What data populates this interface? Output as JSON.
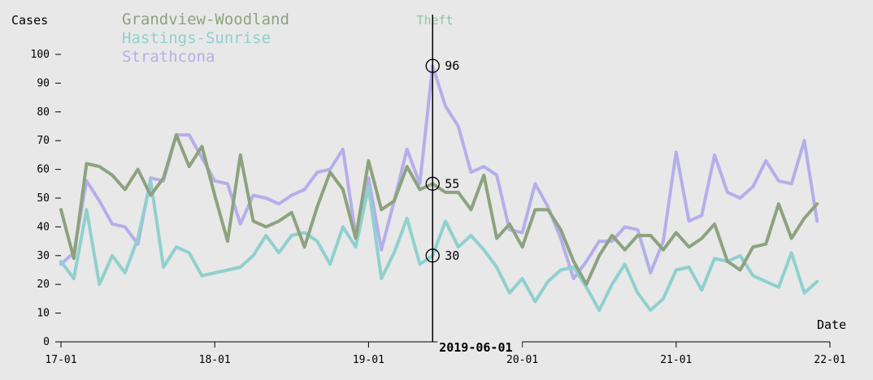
{
  "chart_data": {
    "type": "line",
    "title": "Theft",
    "xlabel": "Date",
    "ylabel": "Cases",
    "ylim": [
      0,
      100
    ],
    "yticks": [
      0,
      10,
      20,
      30,
      40,
      50,
      60,
      70,
      80,
      90,
      100
    ],
    "xticks": [
      "17-01",
      "18-01",
      "19-01",
      "20-01",
      "21-01",
      "22-01"
    ],
    "xlim": [
      "2017-01",
      "2022-01"
    ],
    "series": [
      {
        "name": "Grandview-Woodland",
        "color": "#8da27f",
        "x": [
          "2017-01",
          "2017-02",
          "2017-03",
          "2017-04",
          "2017-05",
          "2017-06",
          "2017-07",
          "2017-08",
          "2017-09",
          "2017-10",
          "2017-11",
          "2017-12",
          "2018-01",
          "2018-02",
          "2018-03",
          "2018-04",
          "2018-05",
          "2018-06",
          "2018-07",
          "2018-08",
          "2018-09",
          "2018-10",
          "2018-11",
          "2018-12",
          "2019-01",
          "2019-02",
          "2019-03",
          "2019-04",
          "2019-05",
          "2019-06",
          "2019-07",
          "2019-08",
          "2019-09",
          "2019-10",
          "2019-11",
          "2019-12",
          "2020-01",
          "2020-02",
          "2020-03",
          "2020-04",
          "2020-05",
          "2020-06",
          "2020-07",
          "2020-08",
          "2020-09",
          "2020-10",
          "2020-11",
          "2020-12",
          "2021-01",
          "2021-02",
          "2021-03",
          "2021-04",
          "2021-05",
          "2021-06",
          "2021-07",
          "2021-08",
          "2021-09",
          "2021-10",
          "2021-11",
          "2021-12"
        ],
        "values": [
          46,
          29,
          62,
          61,
          58,
          53,
          60,
          51,
          57,
          72,
          61,
          68,
          51,
          35,
          65,
          42,
          40,
          42,
          45,
          33,
          47,
          59,
          53,
          36,
          63,
          46,
          49,
          61,
          53,
          55,
          52,
          52,
          46,
          58,
          36,
          41,
          33,
          46,
          46,
          39,
          28,
          20,
          30,
          37,
          32,
          37,
          37,
          32,
          38,
          33,
          36,
          41,
          28,
          25,
          33,
          34,
          48,
          36,
          43,
          48
        ]
      },
      {
        "name": "Hastings-Sunrise",
        "color": "#8fd0cf",
        "x": [
          "2017-01",
          "2017-02",
          "2017-03",
          "2017-04",
          "2017-05",
          "2017-06",
          "2017-07",
          "2017-08",
          "2017-09",
          "2017-10",
          "2017-11",
          "2017-12",
          "2018-01",
          "2018-02",
          "2018-03",
          "2018-04",
          "2018-05",
          "2018-06",
          "2018-07",
          "2018-08",
          "2018-09",
          "2018-10",
          "2018-11",
          "2018-12",
          "2019-01",
          "2019-02",
          "2019-03",
          "2019-04",
          "2019-05",
          "2019-06",
          "2019-07",
          "2019-08",
          "2019-09",
          "2019-10",
          "2019-11",
          "2019-12",
          "2020-01",
          "2020-02",
          "2020-03",
          "2020-04",
          "2020-05",
          "2020-06",
          "2020-07",
          "2020-08",
          "2020-09",
          "2020-10",
          "2020-11",
          "2020-12",
          "2021-01",
          "2021-02",
          "2021-03",
          "2021-04",
          "2021-05",
          "2021-06",
          "2021-07",
          "2021-08",
          "2021-09",
          "2021-10",
          "2021-11",
          "2021-12"
        ],
        "values": [
          28,
          22,
          46,
          20,
          30,
          24,
          36,
          56,
          26,
          33,
          31,
          23,
          24,
          25,
          26,
          30,
          37,
          31,
          37,
          38,
          35,
          27,
          40,
          33,
          54,
          22,
          31,
          43,
          27,
          30,
          42,
          33,
          37,
          32,
          26,
          17,
          22,
          14,
          21,
          25,
          26,
          19,
          11,
          20,
          27,
          17,
          11,
          15,
          25,
          26,
          18,
          29,
          28,
          30,
          23,
          21,
          19,
          31,
          17,
          21
        ]
      },
      {
        "name": "Strathcona",
        "color": "#b5aeeb",
        "x": [
          "2017-01",
          "2017-02",
          "2017-03",
          "2017-04",
          "2017-05",
          "2017-06",
          "2017-07",
          "2017-08",
          "2017-09",
          "2017-10",
          "2017-11",
          "2017-12",
          "2018-01",
          "2018-02",
          "2018-03",
          "2018-04",
          "2018-05",
          "2018-06",
          "2018-07",
          "2018-08",
          "2018-09",
          "2018-10",
          "2018-11",
          "2018-12",
          "2019-01",
          "2019-02",
          "2019-03",
          "2019-04",
          "2019-05",
          "2019-06",
          "2019-07",
          "2019-08",
          "2019-09",
          "2019-10",
          "2019-11",
          "2019-12",
          "2020-01",
          "2020-02",
          "2020-03",
          "2020-04",
          "2020-05",
          "2020-06",
          "2020-07",
          "2020-08",
          "2020-09",
          "2020-10",
          "2020-11",
          "2020-12",
          "2021-01",
          "2021-02",
          "2021-03",
          "2021-04",
          "2021-05",
          "2021-06",
          "2021-07",
          "2021-08",
          "2021-09",
          "2021-10",
          "2021-11",
          "2021-12"
        ],
        "values": [
          27,
          31,
          56,
          49,
          41,
          40,
          34,
          57,
          56,
          72,
          72,
          64,
          56,
          55,
          41,
          51,
          50,
          48,
          51,
          53,
          59,
          60,
          67,
          37,
          57,
          32,
          49,
          67,
          55,
          96,
          82,
          75,
          59,
          61,
          58,
          39,
          38,
          55,
          47,
          36,
          22,
          28,
          35,
          35,
          40,
          39,
          24,
          35,
          66,
          42,
          44,
          65,
          52,
          50,
          54,
          63,
          56,
          55,
          70,
          42
        ]
      }
    ],
    "hover": {
      "x_label": "2019-06-01",
      "values": [
        55,
        30,
        96
      ]
    }
  }
}
